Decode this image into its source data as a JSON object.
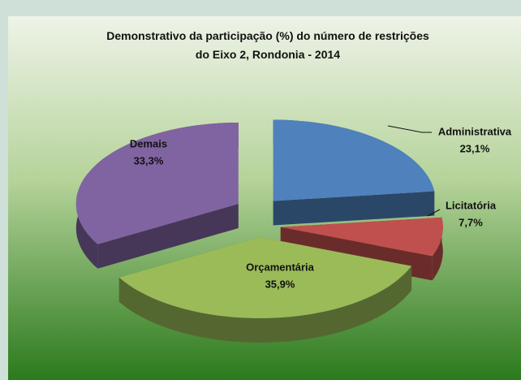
{
  "chart_data": {
    "type": "pie",
    "title": "Demonstrativo da participação (%) do número de restrições do Eixo 2, Rondonia - 2014",
    "categories": [
      "Administrativa",
      "Licitatória",
      "Orçamentária",
      "Demais"
    ],
    "values": [
      23.1,
      7.7,
      35.9,
      33.3
    ],
    "value_labels": [
      "23,1%",
      "7,7%",
      "35,9%",
      "33,3%"
    ],
    "colors": [
      "#4f81bd",
      "#c0504d",
      "#9bbb59",
      "#8064a2"
    ]
  }
}
